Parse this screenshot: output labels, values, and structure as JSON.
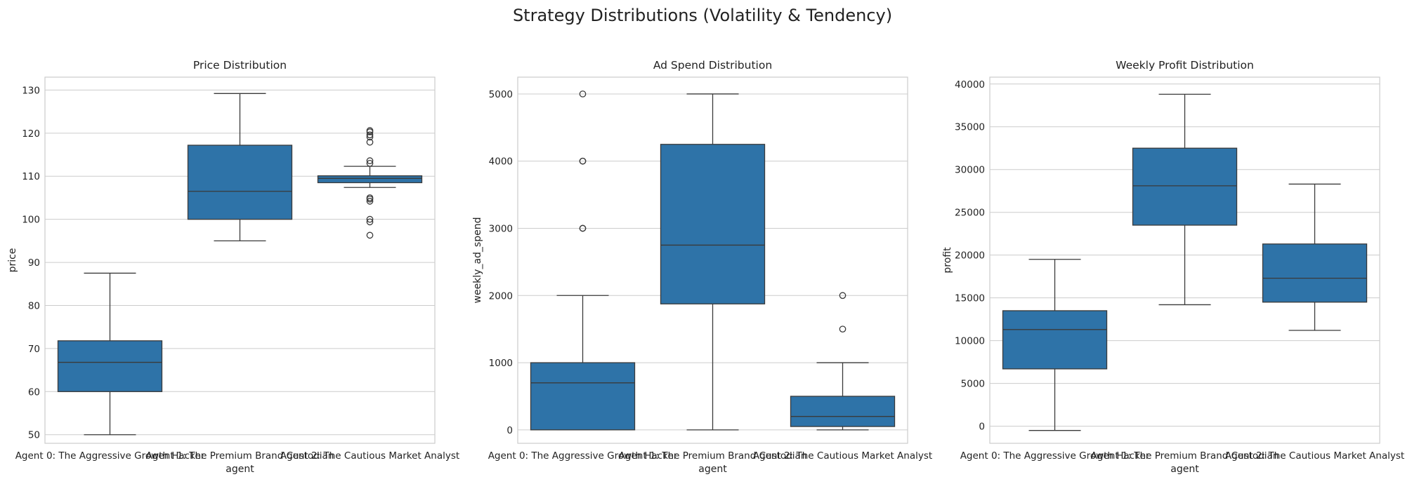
{
  "title": "Strategy Distributions (Volatility & Tendency)",
  "colors": {
    "box": "#2e73a8"
  },
  "chart_data": [
    {
      "type": "box",
      "title": "Price Distribution",
      "xlabel": "agent",
      "ylabel": "price",
      "ylim": [
        48,
        133
      ],
      "yticks": [
        50,
        60,
        70,
        80,
        90,
        100,
        110,
        120,
        130
      ],
      "grid": true,
      "categories": [
        "Agent 0: The Aggressive Growth Hacker",
        "Agent 1: The Premium Brand Custodian",
        "Agent 2: The Cautious Market Analyst"
      ],
      "boxes": [
        {
          "whislo": 50,
          "q1": 60,
          "med": 66.8,
          "q3": 71.8,
          "whishi": 87.5,
          "fliers": []
        },
        {
          "whislo": 95,
          "q1": 100,
          "med": 106.5,
          "q3": 117.2,
          "whishi": 129.2,
          "fliers": []
        },
        {
          "whislo": 107.4,
          "q1": 108.5,
          "med": 109.5,
          "q3": 110.1,
          "whishi": 112.3,
          "fliers": [
            96.3,
            99.4,
            100.0,
            104.2,
            104.7,
            105.0,
            113.0,
            113.6,
            117.9,
            119.1,
            119.6,
            120.3,
            120.6
          ]
        }
      ]
    },
    {
      "type": "box",
      "title": "Ad Spend Distribution",
      "xlabel": "agent",
      "ylabel": "weekly_ad_spend",
      "ylim": [
        -200,
        5250
      ],
      "yticks": [
        0,
        1000,
        2000,
        3000,
        4000,
        5000
      ],
      "grid": true,
      "categories": [
        "Agent 0: The Aggressive Growth Hacker",
        "Agent 1: The Premium Brand Custodian",
        "Agent 2: The Cautious Market Analyst"
      ],
      "boxes": [
        {
          "whislo": 0,
          "q1": 0,
          "med": 700,
          "q3": 1000,
          "whishi": 2000,
          "fliers": [
            3000,
            3000,
            4000,
            4000,
            5000
          ]
        },
        {
          "whislo": 0,
          "q1": 1875,
          "med": 2750,
          "q3": 4250,
          "whishi": 5000,
          "fliers": []
        },
        {
          "whislo": 0,
          "q1": 50,
          "med": 200,
          "q3": 500,
          "whishi": 1000,
          "fliers": [
            1500,
            2000
          ]
        }
      ]
    },
    {
      "type": "box",
      "title": "Weekly Profit Distribution",
      "xlabel": "agent",
      "ylabel": "profit",
      "ylim": [
        -2000,
        40800
      ],
      "yticks": [
        0,
        5000,
        10000,
        15000,
        20000,
        25000,
        30000,
        35000,
        40000
      ],
      "grid": true,
      "categories": [
        "Agent 0: The Aggressive Growth Hacker",
        "Agent 1: The Premium Brand Custodian",
        "Agent 2: The Cautious Market Analyst"
      ],
      "boxes": [
        {
          "whislo": -500,
          "q1": 6700,
          "med": 11300,
          "q3": 13500,
          "whishi": 19500,
          "fliers": []
        },
        {
          "whislo": 14200,
          "q1": 23500,
          "med": 28100,
          "q3": 32500,
          "whishi": 38800,
          "fliers": []
        },
        {
          "whislo": 11200,
          "q1": 14500,
          "med": 17300,
          "q3": 21300,
          "whishi": 28300,
          "fliers": []
        }
      ]
    }
  ]
}
